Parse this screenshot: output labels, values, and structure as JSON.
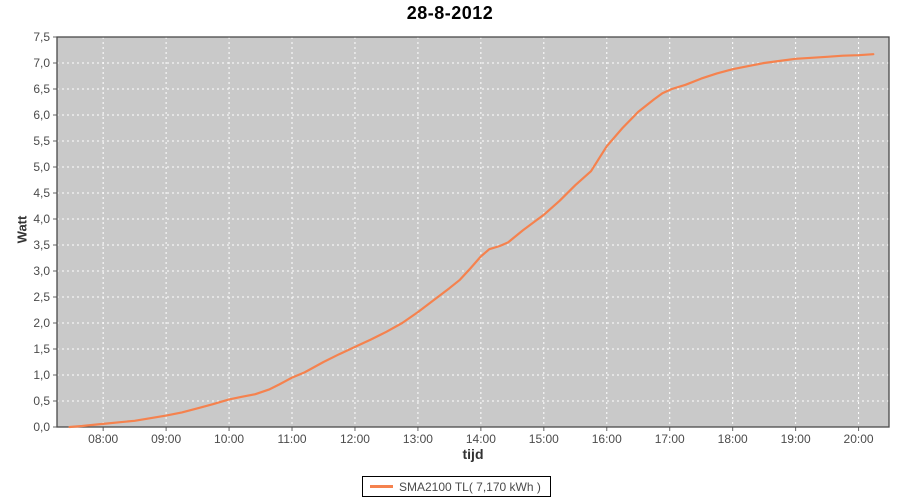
{
  "page": {
    "background": "#ffffff"
  },
  "chart_data": {
    "type": "line",
    "title": "28-8-2012",
    "xlabel": "tijd",
    "ylabel": "Watt",
    "legend_position": "bottom",
    "plot_background": "#c9c9c9",
    "plot_border_color": "#4a4a4a",
    "grid": {
      "color": "#ffffff",
      "style": "dashed"
    },
    "tick_label_color": "#4b4b4b",
    "x_domain": [
      "07:16",
      "20:29"
    ],
    "x_ticks": [
      "08:00",
      "09:00",
      "10:00",
      "11:00",
      "12:00",
      "13:00",
      "14:00",
      "15:00",
      "16:00",
      "17:00",
      "18:00",
      "19:00",
      "20:00"
    ],
    "ylim": [
      0,
      7.5
    ],
    "y_tick_step": 0.5,
    "y_ticks": [
      "0,0",
      "0,5",
      "1,0",
      "1,5",
      "2,0",
      "2,5",
      "3,0",
      "3,5",
      "4,0",
      "4,5",
      "5,0",
      "5,5",
      "6,0",
      "6,5",
      "7,0",
      "7,5"
    ],
    "series": [
      {
        "name": "SMA2100 TL( 7,170 kWh )",
        "color": "#f5824e",
        "total_kwh_label": "7,170 kWh",
        "points": [
          [
            "07:28",
            0.0
          ],
          [
            "07:40",
            0.02
          ],
          [
            "07:55",
            0.05
          ],
          [
            "08:00",
            0.06
          ],
          [
            "08:15",
            0.09
          ],
          [
            "08:30",
            0.12
          ],
          [
            "08:45",
            0.17
          ],
          [
            "09:00",
            0.22
          ],
          [
            "09:15",
            0.28
          ],
          [
            "09:30",
            0.36
          ],
          [
            "09:45",
            0.44
          ],
          [
            "10:00",
            0.53
          ],
          [
            "10:12",
            0.58
          ],
          [
            "10:25",
            0.63
          ],
          [
            "10:38",
            0.72
          ],
          [
            "10:48",
            0.82
          ],
          [
            "11:00",
            0.95
          ],
          [
            "11:12",
            1.05
          ],
          [
            "11:30",
            1.25
          ],
          [
            "11:45",
            1.4
          ],
          [
            "12:00",
            1.54
          ],
          [
            "12:15",
            1.68
          ],
          [
            "12:30",
            1.83
          ],
          [
            "12:45",
            2.0
          ],
          [
            "13:00",
            2.21
          ],
          [
            "13:15",
            2.44
          ],
          [
            "13:30",
            2.67
          ],
          [
            "13:40",
            2.83
          ],
          [
            "13:50",
            3.05
          ],
          [
            "14:00",
            3.28
          ],
          [
            "14:08",
            3.42
          ],
          [
            "14:18",
            3.48
          ],
          [
            "14:26",
            3.55
          ],
          [
            "14:40",
            3.78
          ],
          [
            "15:00",
            4.08
          ],
          [
            "15:15",
            4.35
          ],
          [
            "15:30",
            4.65
          ],
          [
            "15:45",
            4.92
          ],
          [
            "16:00",
            5.4
          ],
          [
            "16:15",
            5.75
          ],
          [
            "16:30",
            6.06
          ],
          [
            "16:45",
            6.3
          ],
          [
            "16:53",
            6.42
          ],
          [
            "17:02",
            6.5
          ],
          [
            "17:15",
            6.58
          ],
          [
            "17:30",
            6.7
          ],
          [
            "17:45",
            6.8
          ],
          [
            "18:00",
            6.88
          ],
          [
            "18:15",
            6.94
          ],
          [
            "18:30",
            7.0
          ],
          [
            "18:45",
            7.04
          ],
          [
            "19:00",
            7.08
          ],
          [
            "19:15",
            7.1
          ],
          [
            "19:30",
            7.12
          ],
          [
            "19:45",
            7.14
          ],
          [
            "20:00",
            7.15
          ],
          [
            "20:14",
            7.17
          ]
        ]
      }
    ]
  }
}
